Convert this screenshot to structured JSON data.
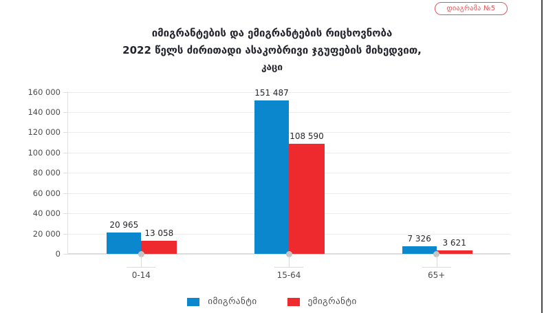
{
  "badge": {
    "label": "დიაგრამა №5",
    "color": "#e0555a"
  },
  "title": {
    "line1": "იმიგრანტების და ემიგრანტების რიცხოვნობა",
    "line2": "2022 წელს ძირითადი ასაკობრივი ჯგუფების მიხედვით,",
    "line3": "კაცი"
  },
  "chart_data": {
    "type": "bar",
    "title": "იმიგრანტების და ემიგრანტების რიცხოვნობა 2022 წელს ძირითადი ასაკობრივი ჯგუფების მიხედვით, კაცი",
    "categories": [
      "0-14",
      "15-64",
      "65+"
    ],
    "series": [
      {
        "key": "immigrant",
        "name": "იმიგრანტი",
        "color": "#0a87cd",
        "values": [
          20965,
          151487,
          7326
        ],
        "labels": [
          "20 965",
          "151 487",
          "7 326"
        ]
      },
      {
        "key": "emigrant",
        "name": "ემიგრანტი",
        "color": "#ee2a2e",
        "values": [
          13058,
          108590,
          3621
        ],
        "labels": [
          "13 058",
          "108 590",
          "3 621"
        ]
      }
    ],
    "xlabel": "",
    "ylabel": "",
    "ylim": [
      0,
      160000
    ],
    "ytick_step": 20000,
    "ytick_labels": [
      "0",
      "20 000",
      "40 000",
      "60 000",
      "80 000",
      "100 000",
      "120 000",
      "140 000",
      "160 000"
    ],
    "grid": true,
    "legend_position": "bottom"
  }
}
